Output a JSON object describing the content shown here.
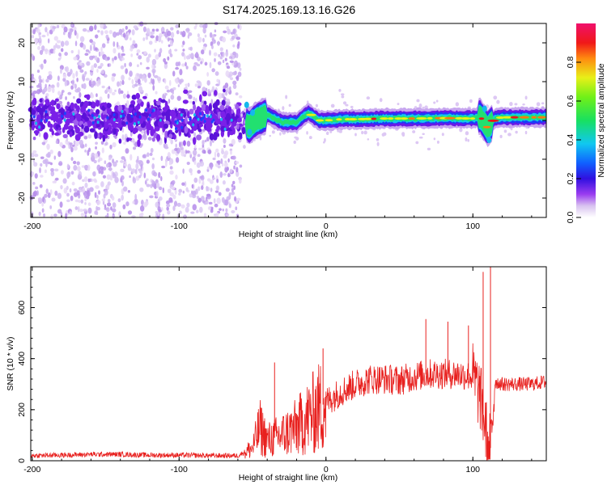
{
  "title": "S174.2025.169.13.16.G26",
  "colors": {
    "snr_line": "#e8201e",
    "axis": "#000000",
    "background": "#ffffff"
  },
  "chart_data": [
    {
      "type": "heatmap",
      "name": "spectrogram",
      "xlabel": "Height of straight line (km)",
      "ylabel": "Frequency (Hz)",
      "xlim": [
        -201,
        150
      ],
      "ylim": [
        -25,
        25
      ],
      "xticks": [
        -200,
        -100,
        0,
        100
      ],
      "yticks": [
        -20,
        -10,
        0,
        10,
        20
      ],
      "colorbar": {
        "label": "Normalized spectral amplitude",
        "range": [
          0,
          1
        ],
        "ticks": [
          "0.0",
          "0.2",
          "0.4",
          "0.6",
          "0.8"
        ],
        "colormap": "rainbow: white→purple→blue→cyan→green→yellow→red→magenta"
      },
      "ridge_points": [
        [
          -200,
          0.5
        ],
        [
          -180,
          0.5
        ],
        [
          -160,
          0.5
        ],
        [
          -140,
          0.5
        ],
        [
          -120,
          0.5
        ],
        [
          -100,
          0.5
        ],
        [
          -80,
          0.5
        ],
        [
          -60,
          0.5
        ],
        [
          -52,
          -1.5
        ],
        [
          -48,
          0
        ],
        [
          -40,
          1.5
        ],
        [
          -30,
          -0.5
        ],
        [
          -20,
          -0.5
        ],
        [
          -12,
          2
        ],
        [
          -5,
          0
        ],
        [
          0,
          0
        ],
        [
          10,
          0.3
        ],
        [
          20,
          0.3
        ],
        [
          40,
          0.5
        ],
        [
          60,
          0.5
        ],
        [
          80,
          0.6
        ],
        [
          100,
          0.5
        ],
        [
          105,
          1
        ],
        [
          110,
          -2
        ],
        [
          115,
          0.5
        ],
        [
          120,
          0.8
        ],
        [
          135,
          0.8
        ],
        [
          150,
          0.8
        ]
      ]
    },
    {
      "type": "line",
      "name": "snr",
      "xlabel": "Height of straight line (km)",
      "ylabel": "SNR (10 * v/v)",
      "xlim": [
        -201,
        150
      ],
      "ylim": [
        0,
        760
      ],
      "xticks": [
        -200,
        -100,
        0,
        100
      ],
      "yticks": [
        0,
        200,
        400,
        600
      ],
      "series": [
        {
          "color": "#e8201e",
          "x": [
            -201,
            -180,
            -160,
            -140,
            -120,
            -100,
            -80,
            -60,
            -50,
            -45,
            -40,
            -30,
            -20,
            -10,
            0,
            10,
            20,
            30,
            40,
            50,
            60,
            70,
            80,
            90,
            100,
            105,
            110,
            112,
            115,
            120,
            130,
            140,
            150
          ],
          "y": [
            20,
            22,
            25,
            25,
            22,
            22,
            20,
            20,
            50,
            130,
            80,
            100,
            130,
            180,
            230,
            270,
            300,
            320,
            320,
            315,
            330,
            340,
            340,
            340,
            330,
            250,
            80,
            50,
            310,
            300,
            300,
            300,
            310
          ]
        }
      ],
      "spikes": [
        {
          "x": -35,
          "y": 385
        },
        {
          "x": -2,
          "y": 440
        },
        {
          "x": 68,
          "y": 555
        },
        {
          "x": 83,
          "y": 545
        },
        {
          "x": 97,
          "y": 530
        },
        {
          "x": 107,
          "y": 740
        },
        {
          "x": 112,
          "y": 760
        }
      ]
    }
  ]
}
